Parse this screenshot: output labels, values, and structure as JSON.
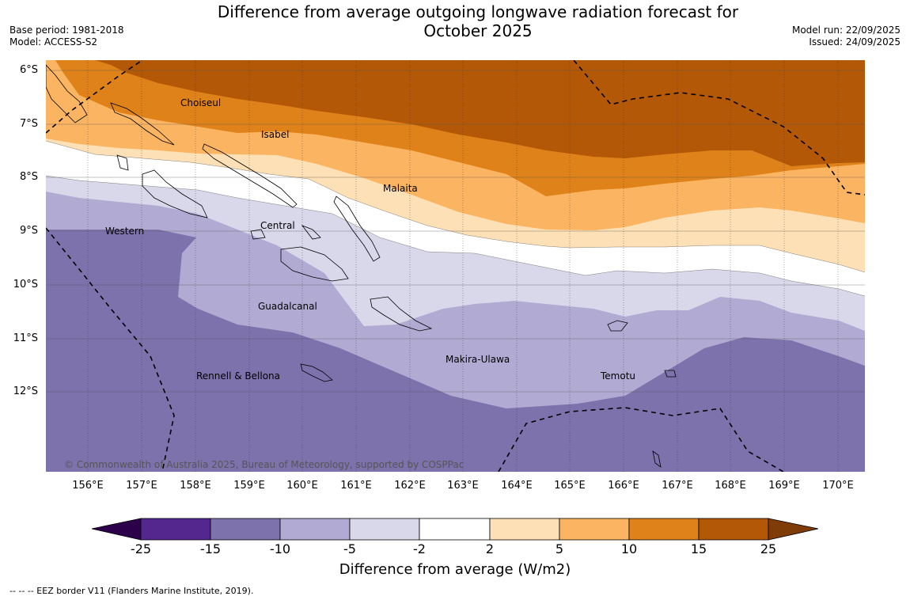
{
  "title": "Difference from average outgoing longwave radiation forecast for October 2025",
  "title_line1": "Difference from average outgoing longwave radiation forecast for",
  "title_line2": "October 2025",
  "meta_left": {
    "base_period": "Base period: 1981-2018",
    "model": "Model: ACCESS-S2"
  },
  "meta_right": {
    "model_run": "Model run: 22/09/2025",
    "issued": "Issued: 24/09/2025"
  },
  "map": {
    "latitude_labels": [
      "6°S",
      "7°S",
      "8°S",
      "9°S",
      "10°S",
      "11°S",
      "12°S"
    ],
    "longitude_labels": [
      "156°E",
      "157°E",
      "158°E",
      "159°E",
      "160°E",
      "161°E",
      "162°E",
      "163°E",
      "164°E",
      "165°E",
      "166°E",
      "167°E",
      "168°E",
      "169°E",
      "170°E"
    ],
    "regions": [
      "Choiseul",
      "Isabel",
      "Malaita",
      "Central",
      "Western",
      "Guadalcanal",
      "Makira-Ulawa",
      "Rennell & Bellona",
      "Temotu"
    ],
    "copyright": "© Commonwealth of Australia 2025, Bureau of Meteorology, supported by COSPPac"
  },
  "colorbar": {
    "ticks": [
      "-25",
      "-15",
      "-10",
      "-5",
      "-2",
      "2",
      "5",
      "10",
      "15",
      "25"
    ],
    "colors": [
      "#54278f",
      "#7e72ad",
      "#b1abd3",
      "#d9d8eb",
      "#ffffff",
      "#fee0b6",
      "#fbb462",
      "#e0821a",
      "#b35807"
    ],
    "under_color": "#2d004b",
    "over_color": "#7f3b08",
    "title": "Difference from average (W/m2)"
  },
  "footer": "--  --  -- EEZ border V11 (Flanders Marine Institute, 2019)."
}
